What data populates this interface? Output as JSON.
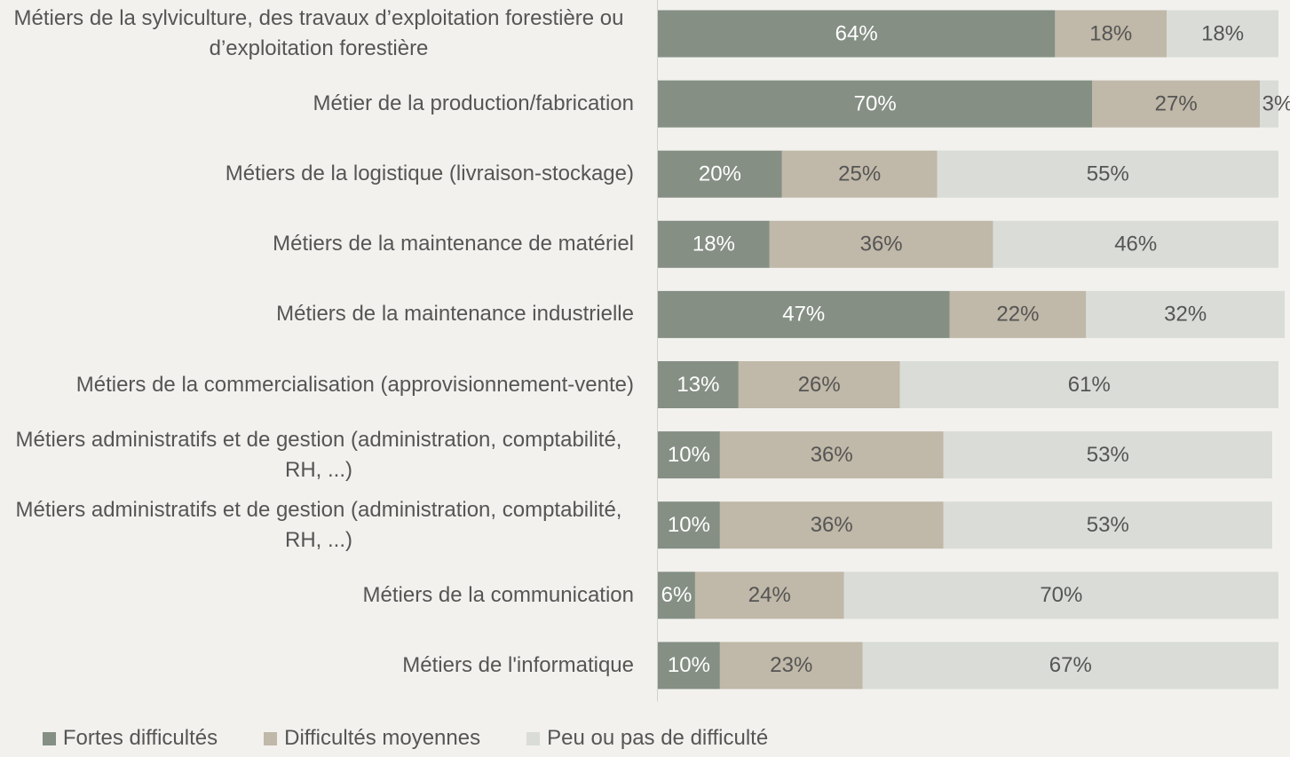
{
  "chart_data": {
    "type": "stacked_barh",
    "categories": [
      "Métiers de la sylviculture, des travaux d’exploitation forestière ou d’exploitation forestière",
      "Métier de la production/fabrication",
      "Métiers de la logistique (livraison-stockage)",
      "Métiers de la maintenance de matériel",
      "Métiers de la maintenance industrielle",
      "Métiers de la commercialisation (approvisionnement-vente)",
      "Métiers administratifs et de gestion (administration, comptabilité, RH, ...)",
      "Métiers administratifs et de gestion (administration, comptabilité, RH, ...)",
      "Métiers de la communication",
      "Métiers de l'informatique"
    ],
    "xlim": [
      0,
      100
    ],
    "series": [
      {
        "name": "Fortes difficultés",
        "color": "#858f84",
        "label_color": "#ffffff",
        "values": [
          64,
          70,
          20,
          18,
          47,
          13,
          10,
          10,
          6,
          10
        ],
        "value_labels": [
          "64%",
          "70%",
          "20%",
          "18%",
          "47%",
          "13%",
          "10%",
          "10%",
          "6%",
          "10%"
        ]
      },
      {
        "name": "Difficultés moyennes",
        "color": "#c0b8a8",
        "label_color": "#555555",
        "values": [
          18,
          27,
          25,
          36,
          22,
          26,
          36,
          36,
          24,
          23
        ],
        "value_labels": [
          "18%",
          "27%",
          "25%",
          "36%",
          "22%",
          "26%",
          "36%",
          "36%",
          "24%",
          "23%"
        ]
      },
      {
        "name": "Peu ou pas de difficulté",
        "color": "#d9dcd7",
        "label_color": "#555555",
        "values": [
          18,
          3,
          55,
          46,
          32,
          61,
          53,
          53,
          70,
          67
        ],
        "value_labels": [
          "18%",
          "3%",
          "55%",
          "46%",
          "32%",
          "61%",
          "53%",
          "53%",
          "70%",
          "67%"
        ]
      }
    ],
    "legend": "bottom"
  }
}
